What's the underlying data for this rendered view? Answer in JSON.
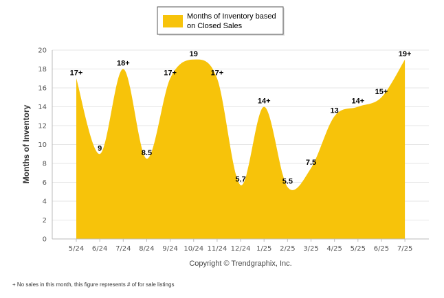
{
  "chart_data": {
    "type": "area",
    "legend": {
      "label": "Months of Inventory based on Closed Sales",
      "position": "top-center",
      "color": "#F7C30A"
    },
    "ylabel": "Months of Inventory",
    "xlabel": "",
    "ylim": [
      0,
      20
    ],
    "y_ticks": [
      0,
      2,
      4,
      6,
      8,
      10,
      12,
      14,
      16,
      18,
      20
    ],
    "grid": true,
    "categories": [
      "5/24",
      "6/24",
      "7/24",
      "8/24",
      "9/24",
      "10/24",
      "11/24",
      "12/24",
      "1/25",
      "2/25",
      "3/25",
      "4/25",
      "5/25",
      "6/25",
      "7/25"
    ],
    "series": [
      {
        "name": "Months of Inventory based on Closed Sales",
        "values": [
          17,
          9,
          18,
          8.5,
          17,
          19,
          17,
          5.7,
          14,
          5.5,
          7.5,
          13,
          14,
          15,
          19
        ],
        "labels": [
          "17+",
          "9",
          "18+",
          "8.5",
          "17+",
          "19",
          "17+",
          "5.7",
          "14+",
          "5.5",
          "7.5",
          "13",
          "14+",
          "15+",
          "19+"
        ],
        "color": "#F7C30A"
      }
    ],
    "copyright": "Copyright © Trendgraphix, Inc.",
    "footnote": "+  No sales in this month, this figure represents # of for sale listings"
  }
}
